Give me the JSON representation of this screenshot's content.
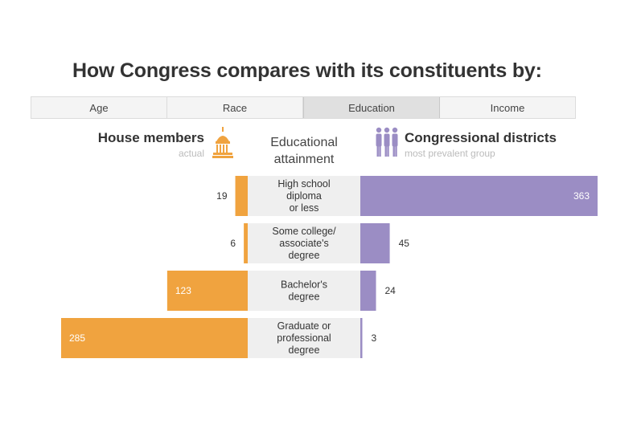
{
  "title": "How Congress compares with its constituents by:",
  "tabs": [
    {
      "label": "Age",
      "active": false
    },
    {
      "label": "Race",
      "active": false
    },
    {
      "label": "Education",
      "active": true
    },
    {
      "label": "Income",
      "active": false
    }
  ],
  "left_header": {
    "title": "House members",
    "subtitle": "actual"
  },
  "center_header": {
    "line1": "Educational",
    "line2": "attainment"
  },
  "right_header": {
    "title": "Congressional districts",
    "subtitle": "most prevalent group"
  },
  "colors": {
    "house": "#f0a33f",
    "districts": "#9b8dc4",
    "label_bg": "#efefef"
  },
  "chart_data": {
    "type": "bar",
    "orientation": "horizontal-diverging",
    "categories": [
      [
        "High school",
        "diploma",
        "or less"
      ],
      [
        "Some college/",
        "associate's",
        "degree"
      ],
      [
        "Bachelor's",
        "degree"
      ],
      [
        "Graduate or",
        "professional",
        "degree"
      ]
    ],
    "series": [
      {
        "name": "House members",
        "values": [
          19,
          6,
          123,
          285
        ]
      },
      {
        "name": "Congressional districts",
        "values": [
          363,
          45,
          24,
          3
        ]
      }
    ]
  }
}
